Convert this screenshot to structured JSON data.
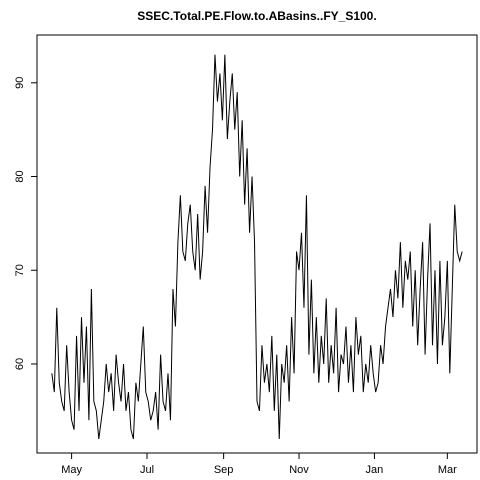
{
  "chart_data": {
    "type": "line",
    "title": "SSEC.Total.PE.Flow.to.ABasins..FY_S100.",
    "color": "#000000",
    "x": [
      14,
      16,
      18,
      20,
      22,
      24,
      26,
      28,
      30,
      32,
      34,
      36,
      38,
      40,
      42,
      44,
      46,
      48,
      50,
      52,
      54,
      56,
      58,
      60,
      62,
      64,
      66,
      68,
      70,
      72,
      74,
      76,
      78,
      80,
      82,
      84,
      86,
      88,
      90,
      92,
      94,
      96,
      98,
      100,
      102,
      104,
      106,
      108,
      110,
      112,
      114,
      116,
      118,
      120,
      122,
      124,
      126,
      128,
      130,
      132,
      134,
      136,
      138,
      140,
      142,
      144,
      146,
      148,
      150,
      152,
      154,
      156,
      158,
      160,
      162,
      164,
      166,
      168,
      170,
      172,
      174,
      176,
      178,
      180,
      182,
      184,
      186,
      188,
      190,
      192,
      194,
      196,
      198,
      200,
      202,
      204,
      206,
      208,
      210,
      212,
      214,
      216,
      218,
      220,
      222,
      224,
      226,
      228,
      230,
      232,
      234,
      236,
      238,
      240,
      242,
      244,
      246,
      248,
      250,
      252,
      254,
      256,
      258,
      260,
      262,
      264,
      266,
      268,
      270,
      272,
      274,
      276,
      278,
      280,
      282,
      284,
      286,
      288,
      290,
      292,
      294,
      296,
      298,
      300,
      302,
      304,
      306,
      308,
      310,
      312,
      314,
      316,
      318,
      320,
      322,
      324,
      326,
      328,
      330,
      332,
      334,
      336,
      338,
      340,
      342,
      344,
      346
    ],
    "values": [
      59,
      57,
      66,
      58,
      56,
      55,
      62,
      57,
      54,
      53,
      63,
      55,
      65,
      58,
      64,
      54,
      68,
      56,
      55,
      52,
      54,
      56,
      60,
      57,
      59,
      55,
      61,
      58,
      56,
      60,
      55,
      57,
      53,
      52,
      58,
      56,
      60,
      64,
      57,
      56,
      54,
      55,
      57,
      53,
      61,
      56,
      55,
      59,
      54,
      68,
      64,
      73,
      78,
      72,
      71,
      75,
      77,
      72,
      70,
      76,
      69,
      72,
      79,
      74,
      81,
      85,
      93,
      88,
      91,
      86,
      93,
      84,
      88,
      91,
      85,
      89,
      80,
      86,
      77,
      83,
      74,
      80,
      73,
      56,
      55,
      62,
      58,
      60,
      57,
      63,
      55,
      61,
      52,
      60,
      58,
      62,
      56,
      65,
      59,
      72,
      70,
      74,
      66,
      78,
      61,
      69,
      59,
      65,
      58,
      63,
      60,
      67,
      58,
      62,
      59,
      66,
      57,
      61,
      60,
      64,
      58,
      62,
      57,
      65,
      61,
      63,
      57,
      60,
      58,
      62,
      59,
      57,
      58,
      62,
      60,
      64,
      66,
      68,
      65,
      70,
      67,
      73,
      66,
      71,
      69,
      72,
      64,
      70,
      62,
      68,
      73,
      61,
      69,
      75,
      62,
      70,
      60,
      71,
      62,
      65,
      71,
      59,
      68,
      77,
      72,
      71,
      72
    ],
    "xlim": [
      2,
      358
    ],
    "ylim": [
      50.5,
      95.1
    ],
    "xticks": [
      {
        "value": 30,
        "label": "May"
      },
      {
        "value": 91,
        "label": "Jul"
      },
      {
        "value": 153,
        "label": "Sep"
      },
      {
        "value": 214,
        "label": "Nov"
      },
      {
        "value": 275,
        "label": "Jan"
      },
      {
        "value": 334,
        "label": "Mar"
      }
    ],
    "yticks": [
      60,
      70,
      80,
      90
    ]
  }
}
